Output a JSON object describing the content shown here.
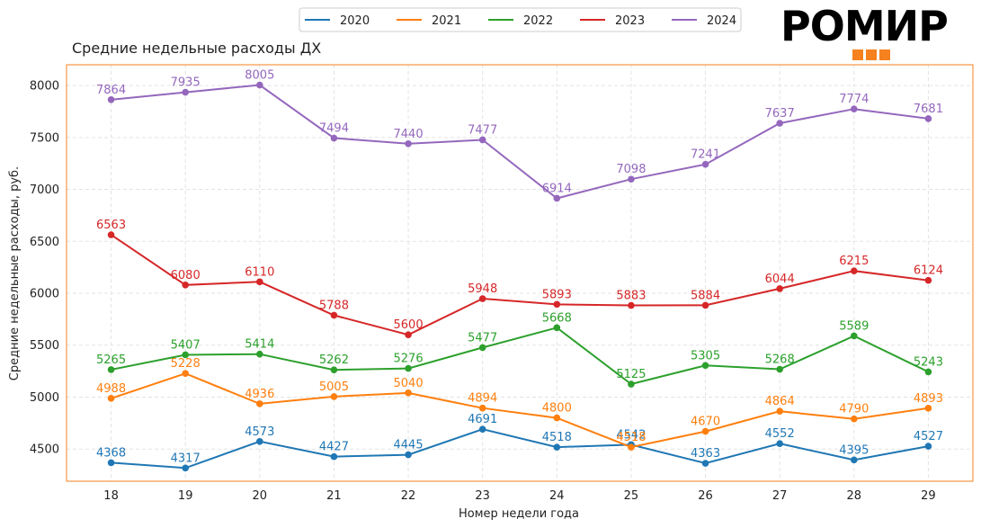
{
  "brand": {
    "name": "РОМИР",
    "accent": "#f5821f"
  },
  "chart_data": {
    "type": "line",
    "title": "Средние недельные расходы ДХ",
    "xlabel": "Номер недели года",
    "ylabel": "Средние недельные расходы, руб.",
    "x": [
      18,
      19,
      20,
      21,
      22,
      23,
      24,
      25,
      26,
      27,
      28,
      29
    ],
    "xlim": [
      17.4,
      29.6
    ],
    "ylim": [
      4190,
      8200
    ],
    "yticks": [
      4500,
      5000,
      5500,
      6000,
      6500,
      7000,
      7500,
      8000
    ],
    "grid": true,
    "legend_position": "top",
    "series": [
      {
        "name": "2020",
        "color": "#1f77b4",
        "values": [
          4368,
          4317,
          4573,
          4427,
          4445,
          4691,
          4518,
          4542,
          4363,
          4552,
          4395,
          4527
        ]
      },
      {
        "name": "2021",
        "color": "#ff7f0e",
        "values": [
          4988,
          5228,
          4936,
          5005,
          5040,
          4894,
          4800,
          4518,
          4670,
          4864,
          4790,
          4893
        ]
      },
      {
        "name": "2022",
        "color": "#2ca02c",
        "values": [
          5265,
          5407,
          5414,
          5262,
          5276,
          5477,
          5668,
          5125,
          5305,
          5268,
          5589,
          5243
        ]
      },
      {
        "name": "2023",
        "color": "#d62728",
        "values": [
          6563,
          6080,
          6110,
          5788,
          5600,
          5948,
          5893,
          5883,
          5884,
          6044,
          6215,
          6124
        ]
      },
      {
        "name": "2024",
        "color": "#9467bd",
        "values": [
          7864,
          7935,
          8005,
          7494,
          7440,
          7477,
          6914,
          7098,
          7241,
          7637,
          7774,
          7681
        ]
      }
    ]
  }
}
